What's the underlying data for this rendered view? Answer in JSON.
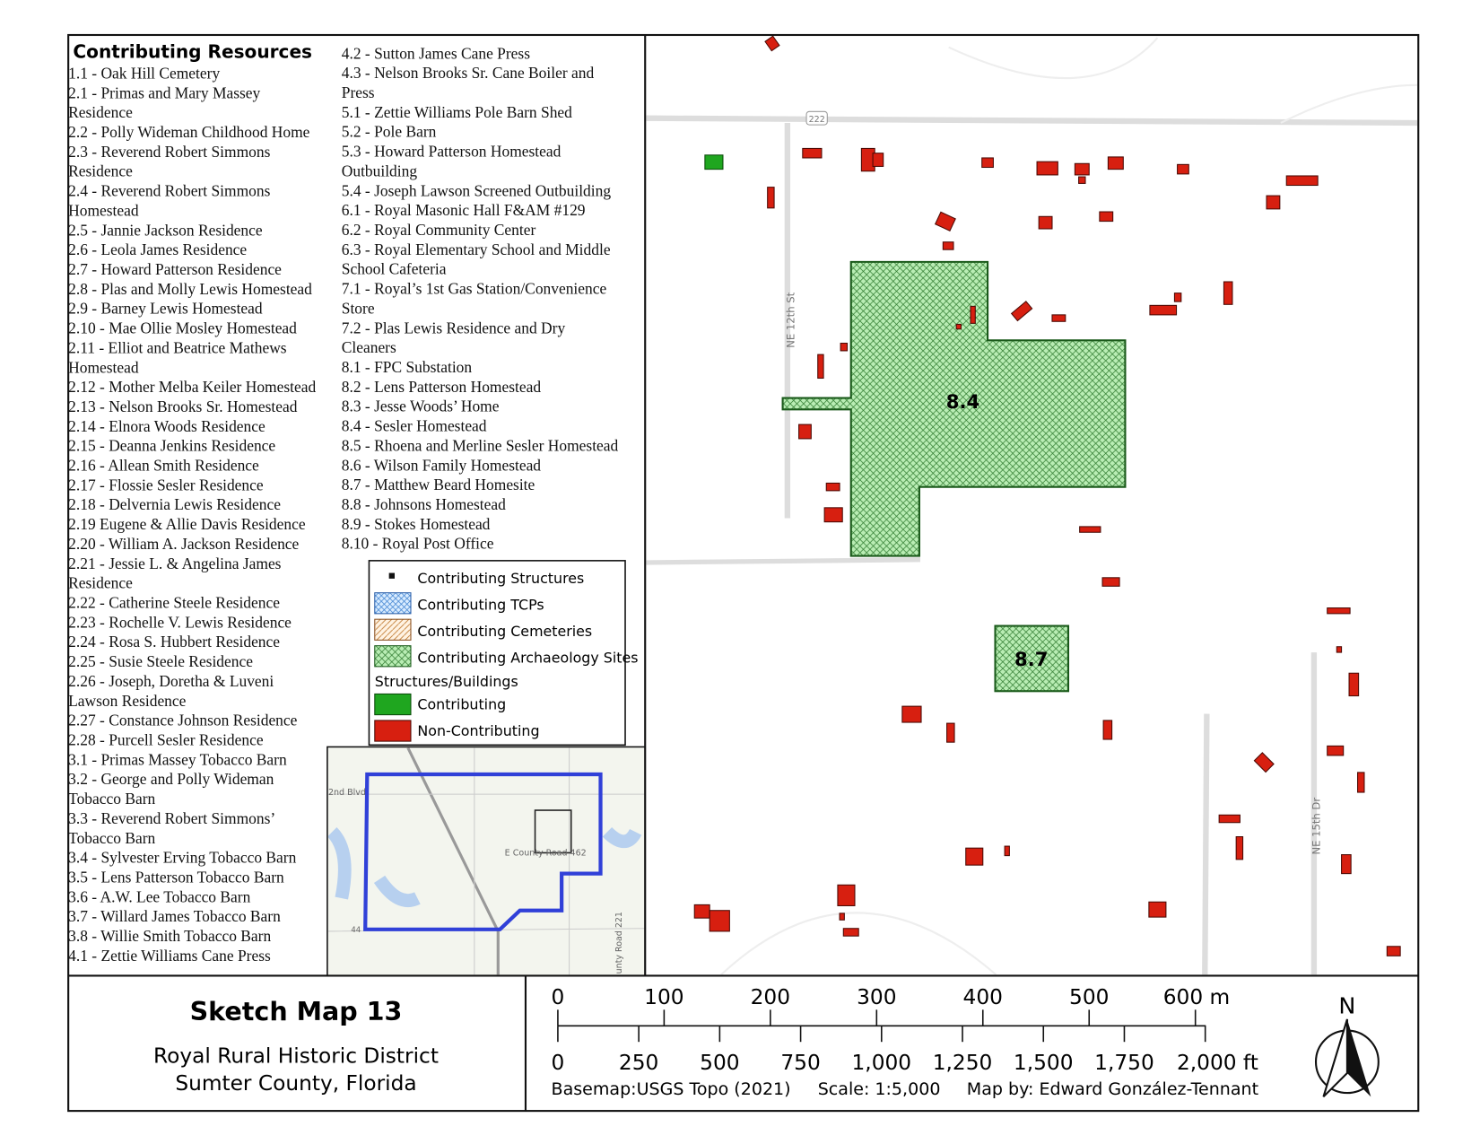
{
  "resources": {
    "title": "Contributing Resources",
    "column1": [
      "1.1 - Oak Hill Cemetery",
      "2.1 - Primas and Mary Massey",
      "Residence",
      "2.2 - Polly Wideman Childhood Home",
      "2.3 - Reverend Robert Simmons",
      "Residence",
      "2.4 - Reverend Robert Simmons",
      "Homestead",
      "2.5 - Jannie Jackson Residence",
      "2.6 - Leola James Residence",
      "2.7 - Howard Patterson Residence",
      "2.8 - Plas and Molly Lewis Homestead",
      "2.9 - Barney Lewis Homestead",
      "2.10 - Mae Ollie Mosley Homestead",
      "2.11 - Elliot and Beatrice Mathews",
      "Homestead",
      "2.12 - Mother Melba Keiler Homestead",
      "2.13 - Nelson Brooks Sr. Homestead",
      "2.14 - Elnora Woods Residence",
      "2.15 - Deanna Jenkins Residence",
      "2.16 - Allean Smith Residence",
      "2.17 - Flossie Sesler Residence",
      "2.18 - Delvernia Lewis Residence",
      "2.19 Eugene & Allie Davis Residence",
      "2.20 - William A. Jackson Residence",
      "2.21 - Jessie L. & Angelina James",
      "Residence",
      "2.22 - Catherine Steele Residence",
      "2.23 -  Rochelle V. Lewis Residence",
      "2.24 - Rosa S. Hubbert Residence",
      "2.25 - Susie Steele Residence",
      "2.26 - Joseph, Doretha & Luveni",
      "Lawson Residence",
      "2.27 - Constance Johnson Residence",
      "2.28 - Purcell Sesler Residence",
      "3.1 - Primas Massey Tobacco Barn",
      "3.2 - George and Polly Wideman",
      "Tobacco Barn",
      "3.3 - Reverend Robert Simmons’",
      "Tobacco Barn",
      "3.4 - Sylvester Erving Tobacco Barn",
      "3.5 - Lens Patterson Tobacco Barn",
      "3.6 - A.W. Lee Tobacco Barn",
      "3.7 - Willard James Tobacco Barn",
      "3.8 - Willie Smith Tobacco Barn",
      "4.1 - Zettie Williams Cane Press"
    ],
    "column2": [
      "4.2 - Sutton James Cane Press",
      "4.3 - Nelson Brooks Sr. Cane Boiler and",
      "Press",
      "5.1 - Zettie Williams Pole Barn Shed",
      "5.2 - Pole Barn",
      "5.3 - Howard Patterson Homestead",
      "Outbuilding",
      "5.4 - Joseph Lawson Screened Outbuilding",
      "6.1 - Royal Masonic Hall F&AM #129",
      "6.2 - Royal Community Center",
      "6.3 - Royal Elementary School and Middle",
      "School Cafeteria",
      "7.1 - Royal’s 1st Gas Station/Convenience",
      "Store",
      "7.2 - Plas Lewis Residence and Dry",
      "Cleaners",
      "8.1 - FPC Substation",
      "8.2 - Lens Patterson Homestead",
      "8.3 - Jesse Woods’ Home",
      "8.4 - Sesler Homestead",
      "8.5 - Rhoena and Merline Sesler Homestead",
      "8.6 - Wilson Family Homestead",
      "8.7 - Matthew Beard Homesite",
      "8.8 - Johnsons Homestead",
      "8.9 - Stokes Homestead",
      "8.10 - Royal Post Office"
    ]
  },
  "legend": {
    "items": [
      "Contributing Structures",
      "Contributing TCPs",
      "Contributing Cemeteries",
      "Contributing Archaeology Sites"
    ],
    "subheading": "Structures/Buildings",
    "buildings": [
      "Contributing",
      "Non-Contributing"
    ]
  },
  "map": {
    "sites": [
      "8.4",
      "8.7"
    ],
    "roads": [
      "NE 12th St",
      "NE 15th Dr",
      "222"
    ],
    "inset_labels": [
      "2nd Blvd",
      "E County Road 462",
      "unty Road 221",
      "44"
    ]
  },
  "title": "Sketch Map 13",
  "subtitle": [
    "Royal Rural Historic District",
    "Sumter County, Florida"
  ],
  "scale": {
    "meters": [
      "0",
      "100",
      "200",
      "300",
      "400",
      "500",
      "600 m"
    ],
    "feet": [
      "0",
      "250",
      "500",
      "750",
      "1,000",
      "1,250",
      "1,500",
      "1,750",
      "2,000 ft"
    ]
  },
  "credits": [
    "Basemap:USGS Topo (2021)",
    "Scale: 1:5,000",
    "Map by: Edward González-Tennant"
  ],
  "north": "N"
}
